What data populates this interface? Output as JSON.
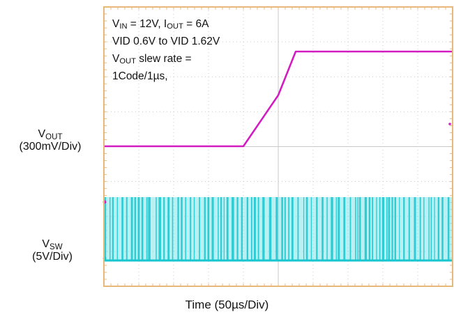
{
  "chart_data": {
    "type": "line",
    "title": "",
    "xlabel": "Time (50µs/Div)",
    "xlim_div": [
      0,
      10
    ],
    "grid": true,
    "colors": {
      "frame": "#e8b87a",
      "grid": "#c9c9c9",
      "vout": "#d21cc2",
      "vsw": "#18c6cf",
      "vsw_fill": "#7fe3ea"
    },
    "annotation_lines": [
      {
        "main": "V",
        "sub": "IN",
        "rest": " = 12V, I",
        "sub2": "OUT",
        "rest2": " = 6A"
      },
      {
        "main": "VID 0.6V to VID 1.62V"
      },
      {
        "main": "V",
        "sub": "OUT",
        "rest": " slew rate ="
      },
      {
        "main": "1Code/1µs,"
      }
    ],
    "channels": [
      {
        "name_main": "V",
        "name_sub": "OUT",
        "scale": "(300mV/Div)",
        "x_div": [
          0,
          4.0,
          5.0,
          5.5,
          10
        ],
        "level": [
          0.6,
          0.6,
          1.15,
          1.62,
          1.62
        ]
      },
      {
        "name_main": "V",
        "name_sub": "SW",
        "scale": "(5V/Div)",
        "high_level_div": 5.2,
        "low_level_div": 1.6,
        "description_values": "switching node pulses between 0V and ~12V"
      }
    ]
  }
}
